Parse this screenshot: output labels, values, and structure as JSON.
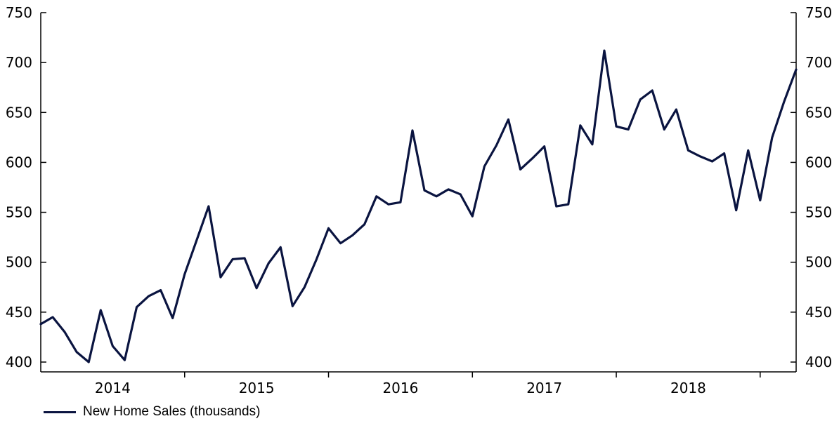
{
  "chart_data": {
    "type": "line",
    "title": "",
    "xlabel": "",
    "ylabel": "",
    "ylim": [
      400,
      750
    ],
    "yticks": [
      400,
      450,
      500,
      550,
      600,
      650,
      700,
      750
    ],
    "xtick_labels": [
      "2014",
      "2015",
      "2016",
      "2017",
      "2018"
    ],
    "grid": false,
    "legend_position": "bottom-left",
    "line_color": "#0a1440",
    "series": [
      {
        "name": "New Home Sales (thousands)",
        "x": [
          "2013-08",
          "2013-09",
          "2013-10",
          "2013-11",
          "2013-12",
          "2014-01",
          "2014-02",
          "2014-03",
          "2014-04",
          "2014-05",
          "2014-06",
          "2014-07",
          "2014-08",
          "2014-09",
          "2014-10",
          "2014-11",
          "2014-12",
          "2015-01",
          "2015-02",
          "2015-03",
          "2015-04",
          "2015-05",
          "2015-06",
          "2015-07",
          "2015-08",
          "2015-09",
          "2015-10",
          "2015-11",
          "2015-12",
          "2016-01",
          "2016-02",
          "2016-03",
          "2016-04",
          "2016-05",
          "2016-06",
          "2016-07",
          "2016-08",
          "2016-09",
          "2016-10",
          "2016-11",
          "2016-12",
          "2017-01",
          "2017-02",
          "2017-03",
          "2017-04",
          "2017-05",
          "2017-06",
          "2017-07",
          "2017-08",
          "2017-09",
          "2017-10",
          "2017-11",
          "2017-12",
          "2018-01",
          "2018-02",
          "2018-03",
          "2018-04",
          "2018-05",
          "2018-06",
          "2018-07",
          "2018-08",
          "2018-09",
          "2018-10",
          "2018-11"
        ],
        "values": [
          438,
          445,
          430,
          410,
          400,
          452,
          416,
          402,
          455,
          466,
          472,
          444,
          488,
          522,
          556,
          485,
          503,
          504,
          474,
          499,
          515,
          456,
          475,
          503,
          534,
          519,
          527,
          538,
          566,
          558,
          560,
          632,
          572,
          566,
          573,
          568,
          546,
          596,
          617,
          643,
          593,
          604,
          616,
          556,
          558,
          637,
          618,
          712,
          636,
          633,
          663,
          672,
          633,
          653,
          612,
          606,
          601,
          609,
          552,
          612,
          562,
          625,
          661,
          693
        ]
      }
    ]
  }
}
